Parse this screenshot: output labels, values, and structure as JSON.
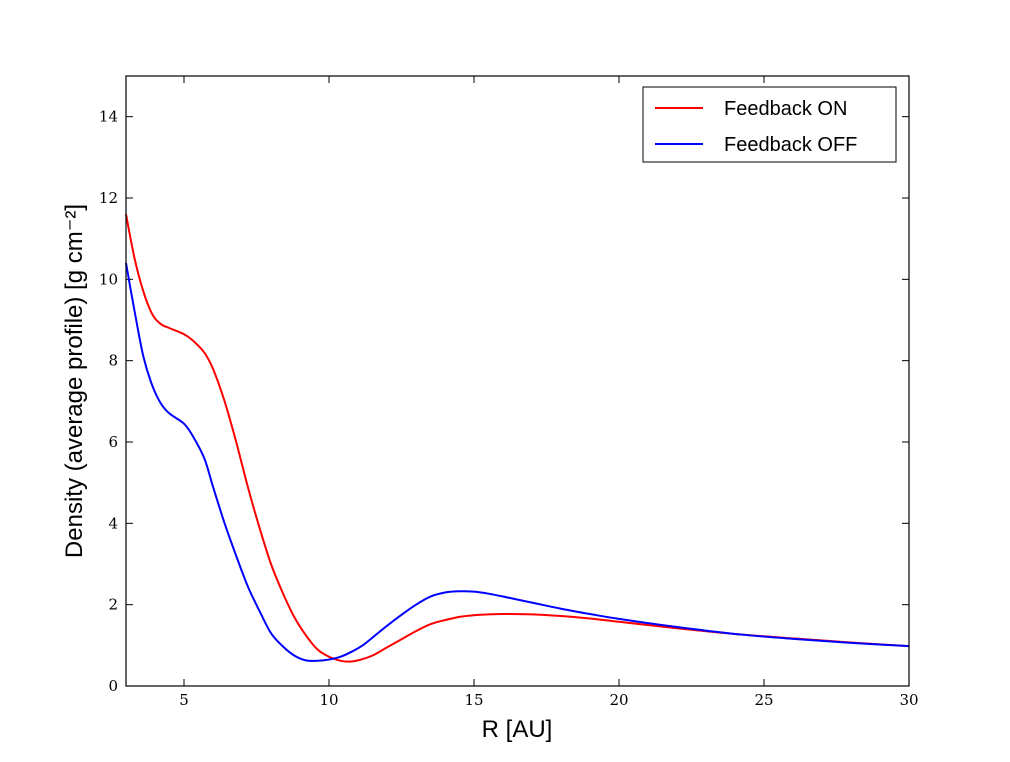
{
  "chart_data": {
    "type": "line",
    "xlabel": "R [AU]",
    "ylabel": "Density (average profile) [g cm⁻²]",
    "xlim": [
      3,
      30
    ],
    "ylim": [
      0,
      15
    ],
    "xticks": [
      "5",
      "10",
      "15",
      "20",
      "25",
      "30"
    ],
    "yticks": [
      "0",
      "2",
      "4",
      "6",
      "8",
      "10",
      "12",
      "14"
    ],
    "grid": false,
    "legend_position": "top-right",
    "series": [
      {
        "name": "Feedback ON",
        "color": "#ff0000",
        "x": [
          3.0,
          3.3,
          3.6,
          3.9,
          4.2,
          4.5,
          5.0,
          5.3,
          5.7,
          6.0,
          6.4,
          6.8,
          7.2,
          7.6,
          8.0,
          8.4,
          8.8,
          9.2,
          9.6,
          10.0,
          10.4,
          10.7,
          11.0,
          11.5,
          12.0,
          12.5,
          13.0,
          13.5,
          14.0,
          14.5,
          15.0,
          15.5,
          16.0,
          17.0,
          18.0,
          19.0,
          20.0,
          22.0,
          24.0,
          26.0,
          28.0,
          30.0
        ],
        "y": [
          11.6,
          10.5,
          9.7,
          9.15,
          8.9,
          8.8,
          8.65,
          8.5,
          8.2,
          7.8,
          7.0,
          6.0,
          4.9,
          3.9,
          3.0,
          2.3,
          1.7,
          1.25,
          0.9,
          0.72,
          0.62,
          0.6,
          0.63,
          0.75,
          0.95,
          1.15,
          1.35,
          1.52,
          1.62,
          1.7,
          1.74,
          1.76,
          1.77,
          1.76,
          1.72,
          1.66,
          1.58,
          1.42,
          1.28,
          1.17,
          1.07,
          0.98
        ]
      },
      {
        "name": "Feedback OFF",
        "color": "#0000ff",
        "x": [
          3.0,
          3.3,
          3.6,
          3.9,
          4.2,
          4.5,
          5.0,
          5.3,
          5.7,
          6.0,
          6.4,
          6.8,
          7.2,
          7.6,
          8.0,
          8.4,
          8.8,
          9.2,
          9.6,
          10.0,
          10.4,
          10.8,
          11.2,
          11.6,
          12.0,
          12.5,
          13.0,
          13.5,
          14.0,
          14.5,
          15.0,
          15.5,
          16.0,
          17.0,
          18.0,
          19.0,
          20.0,
          22.0,
          24.0,
          26.0,
          28.0,
          30.0
        ],
        "y": [
          10.4,
          9.2,
          8.1,
          7.4,
          6.95,
          6.7,
          6.45,
          6.15,
          5.6,
          4.9,
          4.0,
          3.2,
          2.45,
          1.85,
          1.3,
          0.98,
          0.75,
          0.63,
          0.62,
          0.65,
          0.72,
          0.85,
          1.02,
          1.25,
          1.48,
          1.75,
          2.0,
          2.2,
          2.3,
          2.33,
          2.32,
          2.27,
          2.2,
          2.05,
          1.9,
          1.77,
          1.65,
          1.45,
          1.28,
          1.16,
          1.06,
          0.98
        ]
      }
    ]
  }
}
